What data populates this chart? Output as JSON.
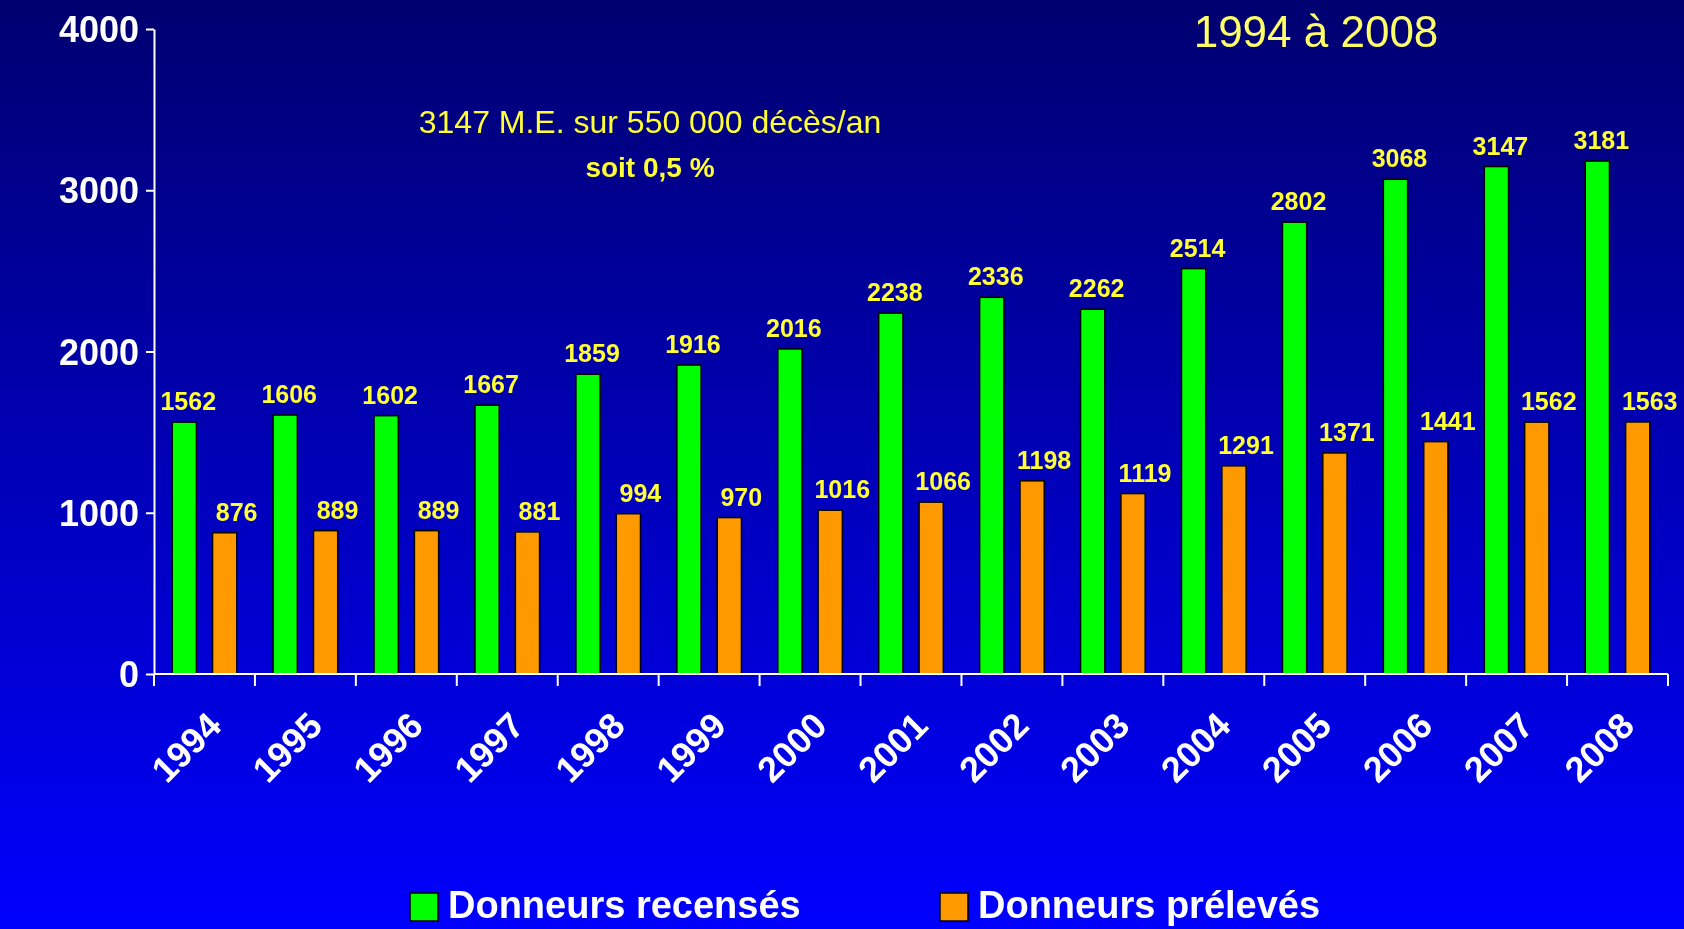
{
  "chart_data": {
    "type": "bar",
    "title": "1994 à 2008",
    "annotations": [
      "3147 M.E. sur 550 000 décès/an",
      "soit  0,5 %"
    ],
    "categories": [
      "1994",
      "1995",
      "1996",
      "1997",
      "1998",
      "1999",
      "2000",
      "2001",
      "2002",
      "2003",
      "2004",
      "2005",
      "2006",
      "2007",
      "2008"
    ],
    "series": [
      {
        "name": "Donneurs recensés",
        "color": "#00ff00",
        "values": [
          1562,
          1606,
          1602,
          1667,
          1859,
          1916,
          2016,
          2238,
          2336,
          2262,
          2514,
          2802,
          3068,
          3147,
          3181
        ]
      },
      {
        "name": "Donneurs prélevés",
        "color": "#ff9900",
        "values": [
          876,
          889,
          889,
          881,
          994,
          970,
          1016,
          1066,
          1198,
          1119,
          1291,
          1371,
          1441,
          1562,
          1563
        ]
      }
    ],
    "ylim": [
      0,
      4000
    ],
    "yticks": [
      0,
      1000,
      2000,
      3000,
      4000
    ],
    "data_labels": true,
    "legend": "bottom"
  }
}
